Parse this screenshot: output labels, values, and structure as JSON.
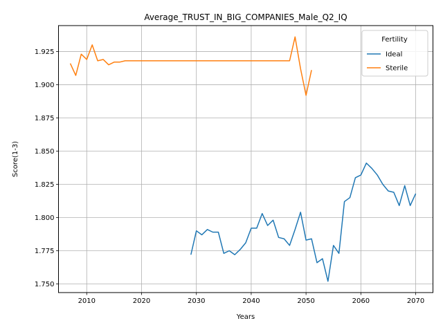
{
  "chart_data": {
    "type": "line",
    "title": "Average_TRUST_IN_BIG_COMPANIES_Male_Q2_IQ",
    "xlabel": "Years",
    "ylabel": "Score(1-3)",
    "xlim": [
      2004.85,
      2073.15
    ],
    "ylim": [
      1.7435,
      1.9445
    ],
    "xticks": [
      2010,
      2020,
      2030,
      2040,
      2050,
      2060,
      2070
    ],
    "yticks": [
      1.75,
      1.775,
      1.8,
      1.825,
      1.85,
      1.875,
      1.9,
      1.925
    ],
    "ytick_labels": [
      "1.750",
      "1.775",
      "1.800",
      "1.825",
      "1.850",
      "1.875",
      "1.900",
      "1.925"
    ],
    "grid": true,
    "legend": {
      "title": "Fertility",
      "position": "top-right"
    },
    "series": [
      {
        "name": "Ideal",
        "color": "#1f77b4",
        "x": [
          2029,
          2030,
          2031,
          2032,
          2033,
          2034,
          2035,
          2036,
          2037,
          2038,
          2039,
          2040,
          2041,
          2042,
          2043,
          2044,
          2045,
          2046,
          2047,
          2048,
          2049,
          2050,
          2051,
          2052,
          2053,
          2054,
          2055,
          2056,
          2057,
          2058,
          2059,
          2060,
          2061,
          2062,
          2063,
          2064,
          2065,
          2066,
          2067,
          2068,
          2069,
          2070
        ],
        "y": [
          1.772,
          1.79,
          1.787,
          1.791,
          1.789,
          1.789,
          1.773,
          1.775,
          1.772,
          1.776,
          1.781,
          1.792,
          1.792,
          1.803,
          1.794,
          1.798,
          1.785,
          1.784,
          1.779,
          1.791,
          1.804,
          1.783,
          1.784,
          1.766,
          1.769,
          1.752,
          1.779,
          1.773,
          1.812,
          1.815,
          1.83,
          1.832,
          1.841,
          1.837,
          1.832,
          1.825,
          1.82,
          1.819,
          1.809,
          1.824,
          1.809,
          1.818
        ]
      },
      {
        "name": "Sterile",
        "color": "#ff7f0e",
        "x": [
          2007,
          2008,
          2009,
          2010,
          2011,
          2012,
          2013,
          2014,
          2015,
          2016,
          2017,
          2018,
          2019,
          2020,
          2021,
          2022,
          2023,
          2024,
          2025,
          2026,
          2027,
          2028,
          2029,
          2030,
          2031,
          2032,
          2033,
          2034,
          2035,
          2036,
          2037,
          2038,
          2039,
          2040,
          2041,
          2042,
          2043,
          2044,
          2045,
          2046,
          2047,
          2048,
          2049,
          2050,
          2051
        ],
        "y": [
          1.916,
          1.907,
          1.923,
          1.919,
          1.93,
          1.918,
          1.919,
          1.915,
          1.917,
          1.917,
          1.918,
          1.918,
          1.918,
          1.918,
          1.918,
          1.918,
          1.918,
          1.918,
          1.918,
          1.918,
          1.918,
          1.918,
          1.918,
          1.918,
          1.918,
          1.918,
          1.918,
          1.918,
          1.918,
          1.918,
          1.918,
          1.918,
          1.918,
          1.918,
          1.918,
          1.918,
          1.918,
          1.918,
          1.918,
          1.918,
          1.918,
          1.936,
          1.912,
          1.892,
          1.911
        ]
      }
    ]
  }
}
